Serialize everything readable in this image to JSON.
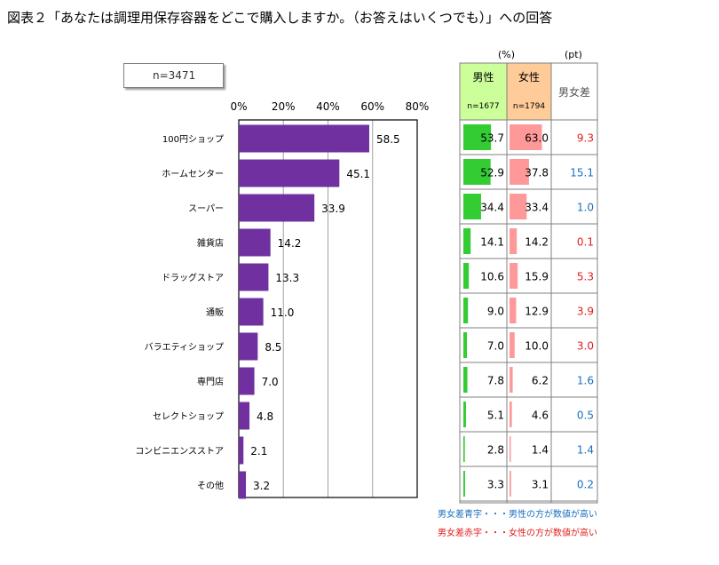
{
  "title": "図表２「あなたは調理用保存容器をどこで購入しますか。（お答えはいくつでも）」への回答",
  "sample_label": "n=3471",
  "table": {
    "unit_percent": "(%)",
    "unit_pt": "(pt)",
    "male_label": "男性",
    "male_n": "n=1677",
    "female_label": "女性",
    "female_n": "n=1794",
    "diff_label": "男女差",
    "male_color": "#33cc33",
    "female_color": "#ff9999",
    "male_header_bg": "#ccff99",
    "female_header_bg": "#ffcc99",
    "blue_color": "#1a6fc0",
    "red_color": "#e02020"
  },
  "notes": {
    "blue": "男女差青字・・・男性の方が数値が高い",
    "red": "男女差赤字・・・女性の方が数値が高い"
  },
  "chart_data": {
    "type": "bar",
    "orientation": "horizontal",
    "categories": [
      "100円ショップ",
      "ホームセンター",
      "スーパー",
      "雑貨店",
      "ドラッグストア",
      "通販",
      "バラエティショップ",
      "専門店",
      "セレクトショップ",
      "コンビニエンスストア",
      "その他"
    ],
    "values": [
      58.5,
      45.1,
      33.9,
      14.2,
      13.3,
      11.0,
      8.5,
      7.0,
      4.8,
      2.1,
      3.2
    ],
    "value_labels": [
      "58.5",
      "45.1",
      "33.9",
      "14.2",
      "13.3",
      "11.0",
      "8.5",
      "7.0",
      "4.8",
      "2.1",
      "3.2"
    ],
    "xlim": [
      0,
      80
    ],
    "xticks": [
      "0%",
      "20%",
      "40%",
      "60%",
      "80%"
    ],
    "grid": true,
    "bar_color": "#7030a0",
    "male": [
      "53.7",
      "52.9",
      "34.4",
      "14.1",
      "10.6",
      "9.0",
      "7.0",
      "7.8",
      "5.1",
      "2.8",
      "3.3"
    ],
    "female": [
      "63.0",
      "37.8",
      "33.4",
      "14.2",
      "15.9",
      "12.9",
      "10.0",
      "6.2",
      "4.6",
      "1.4",
      "3.1"
    ],
    "diff": [
      "9.3",
      "15.1",
      "1.0",
      "0.1",
      "5.3",
      "3.9",
      "3.0",
      "1.6",
      "0.5",
      "1.4",
      "0.2"
    ],
    "diff_higher": [
      "female",
      "male",
      "male",
      "female",
      "female",
      "female",
      "female",
      "male",
      "male",
      "male",
      "male"
    ]
  }
}
